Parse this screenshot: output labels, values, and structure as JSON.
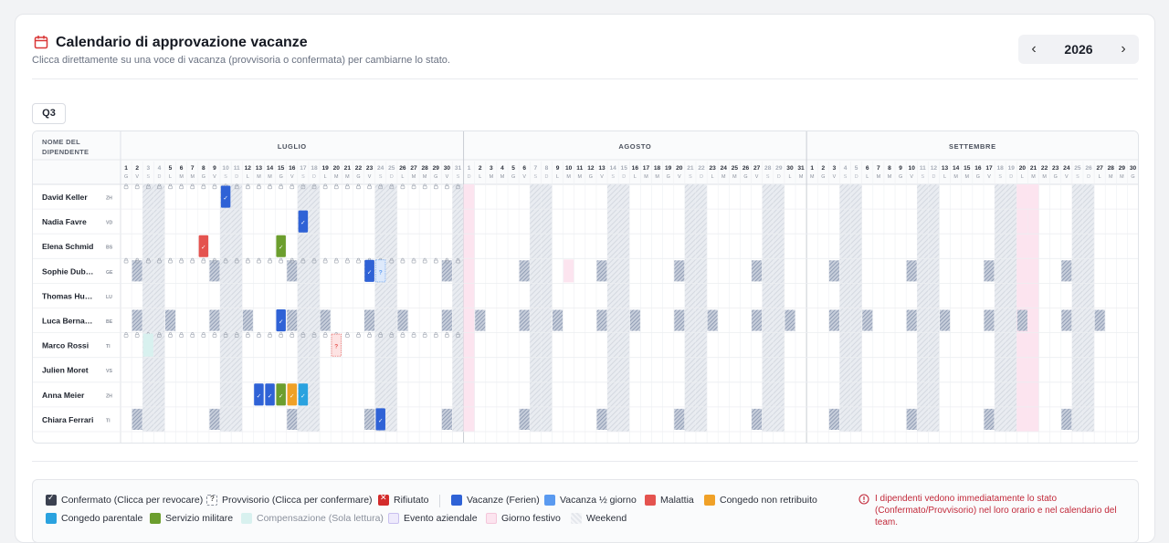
{
  "header": {
    "title": "Calendario di approvazione vacanze",
    "subtitle": "Clicca direttamente su una voce di vacanza (provvisoria o confermata) per cambiarne lo stato.",
    "icon": "calendar-icon"
  },
  "year_nav": {
    "year": "2026",
    "prev_icon": "chevron-left-icon",
    "next_icon": "chevron-right-icon"
  },
  "quarter": "Q3",
  "table": {
    "name_header": [
      "NOME DEL",
      "DIPENDENTE"
    ],
    "months": [
      {
        "name": "LUGLIO",
        "days": 31,
        "first_weekday": 3
      },
      {
        "name": "AGOSTO",
        "days": 31,
        "first_weekday": 6
      },
      {
        "name": "SETTEMBRE",
        "days": 30,
        "first_weekday": 2
      }
    ],
    "weekday_letters": [
      "L",
      "M",
      "M",
      "G",
      "V",
      "S",
      "D"
    ],
    "holidays": [
      {
        "month": 1,
        "day": 1
      },
      {
        "month": 2,
        "day": 20
      },
      {
        "month": 2,
        "day": 21
      }
    ],
    "employees": [
      {
        "name": "David Keller",
        "code": "ZH",
        "locked_all": true,
        "holiday_day": 20,
        "part_time": [],
        "entries": [
          {
            "month": 0,
            "day": 10,
            "type": "ferien",
            "status": "confirmed"
          }
        ]
      },
      {
        "name": "Nadia Favre",
        "code": "VD",
        "locked_all": false,
        "holiday_day": 21,
        "part_time": [],
        "entries": [
          {
            "month": 0,
            "day": 17,
            "type": "ferien",
            "status": "confirmed"
          }
        ]
      },
      {
        "name": "Elena Schmid",
        "code": "BS",
        "locked_all": false,
        "holiday_day": 20,
        "part_time": [],
        "entries": [
          {
            "month": 0,
            "day": 8,
            "type": "malattia",
            "status": "confirmed"
          },
          {
            "month": 0,
            "day": 15,
            "type": "militare",
            "status": "confirmed"
          }
        ]
      },
      {
        "name": "Sophie Dub…",
        "code": "GE",
        "locked_all": true,
        "holiday_day": 20,
        "part_time": [
          5
        ],
        "entries": [
          {
            "month": 0,
            "day": 23,
            "type": "ferien",
            "status": "confirmed"
          },
          {
            "month": 0,
            "day": 24,
            "type": "halfday",
            "status": "provisional"
          },
          {
            "month": 1,
            "day": 10,
            "type": "festivo",
            "status": "none"
          }
        ]
      },
      {
        "name": "Thomas Hu…",
        "code": "LU",
        "locked_all": false,
        "holiday_day": 20,
        "part_time": [],
        "entries": []
      },
      {
        "name": "Luca Berna…",
        "code": "BE",
        "locked_all": false,
        "holiday_day": 20,
        "part_time": [
          1,
          5
        ],
        "entries": [
          {
            "month": 0,
            "day": 15,
            "type": "ferien",
            "status": "confirmed"
          }
        ]
      },
      {
        "name": "Marco Rossi",
        "code": "TI",
        "locked_all": true,
        "holiday_day": 20,
        "part_time": [],
        "entries": [
          {
            "month": 0,
            "day": 3,
            "type": "compensazione",
            "status": "none"
          },
          {
            "month": 0,
            "day": 20,
            "type": "malattia",
            "status": "provisional"
          }
        ]
      },
      {
        "name": "Julien Moret",
        "code": "VS",
        "locked_all": false,
        "holiday_day": 20,
        "part_time": [],
        "entries": []
      },
      {
        "name": "Anna Meier",
        "code": "ZH",
        "locked_all": false,
        "holiday_day": 20,
        "part_time": [],
        "entries": [
          {
            "month": 0,
            "day": 13,
            "type": "ferien",
            "status": "confirmed"
          },
          {
            "month": 0,
            "day": 14,
            "type": "ferien",
            "status": "confirmed"
          },
          {
            "month": 0,
            "day": 15,
            "type": "militare",
            "status": "confirmed"
          },
          {
            "month": 0,
            "day": 16,
            "type": "non_retribuito",
            "status": "confirmed"
          },
          {
            "month": 0,
            "day": 17,
            "type": "parentale",
            "status": "confirmed"
          }
        ]
      },
      {
        "name": "Chiara Ferrari",
        "code": "TI",
        "locked_all": false,
        "holiday_day": 20,
        "part_time": [
          5
        ],
        "entries": [
          {
            "month": 0,
            "day": 24,
            "type": "ferien",
            "status": "confirmed"
          }
        ]
      }
    ]
  },
  "colors": {
    "ferien": "#2f62d6",
    "halfday": "#5a9af0",
    "malattia": "#e4534f",
    "non_retribuito": "#f0a127",
    "parentale": "#2aa2df",
    "militare": "#6c9e2e",
    "compensazione": "#d8f1ef",
    "evento": "#eeeafc",
    "festivo": "#fce4ef",
    "weekend": "#eceff3",
    "accent": "#d93636"
  },
  "legend": [
    {
      "label": "Confermato (Clicca per revocare)",
      "kind": "confermato"
    },
    {
      "label": "Provvisorio (Clicca per confermare)",
      "kind": "provvisorio"
    },
    {
      "label": "Rifiutato",
      "kind": "rifiutato"
    },
    {
      "label": "Vacanze (Ferien)",
      "kind": "ferien"
    },
    {
      "label": "Vacanza ½ giorno",
      "kind": "halfday"
    },
    {
      "label": "Malattia",
      "kind": "malattia"
    },
    {
      "label": "Congedo non retribuito",
      "kind": "non_retribuito"
    },
    {
      "label": "Congedo parentale",
      "kind": "parentale"
    },
    {
      "label": "Servizio militare",
      "kind": "militare"
    },
    {
      "label": "Compensazione (Sola lettura)",
      "kind": "compensazione"
    },
    {
      "label": "Evento aziendale",
      "kind": "evento"
    },
    {
      "label": "Giorno festivo",
      "kind": "festivo"
    },
    {
      "label": "Weekend",
      "kind": "weekend"
    }
  ],
  "note": "I dipendenti vedono immediatamente lo stato (Confermato/Provvisorio) nel loro orario e nel calendario del team."
}
